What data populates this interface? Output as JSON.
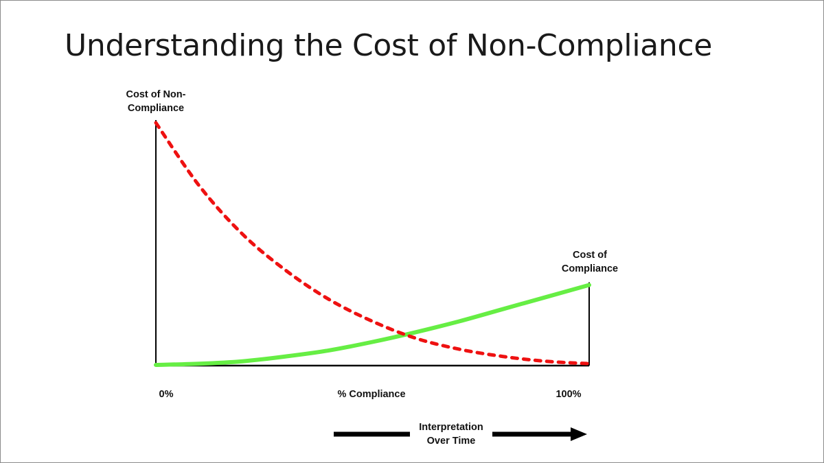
{
  "title": "Understanding the Cost of Non-Compliance",
  "chart_data": {
    "type": "line",
    "xlabel": "% Compliance",
    "x_tick_labels": [
      "0%",
      "100%"
    ],
    "xlim": [
      0,
      100
    ],
    "ylim": [
      0,
      100
    ],
    "series": [
      {
        "name": "Cost of Non-Compliance",
        "style": "dashed",
        "color": "#ee1111",
        "x": [
          0,
          10,
          20,
          30,
          40,
          50,
          60,
          70,
          80,
          90,
          100
        ],
        "y": [
          100,
          74,
          54,
          39,
          27,
          18,
          11,
          6.5,
          3.5,
          1.5,
          0.5
        ]
      },
      {
        "name": "Cost of Compliance",
        "style": "solid",
        "color": "#66ee44",
        "x": [
          0,
          10,
          20,
          30,
          40,
          50,
          60,
          70,
          80,
          90,
          100
        ],
        "y": [
          0,
          0.5,
          1.5,
          3.5,
          6,
          9.5,
          13.5,
          18,
          23,
          28,
          33
        ]
      }
    ],
    "annotations": [
      {
        "text": "Interpretation Over Time",
        "type": "arrow",
        "direction": "right"
      }
    ],
    "grid": false
  }
}
